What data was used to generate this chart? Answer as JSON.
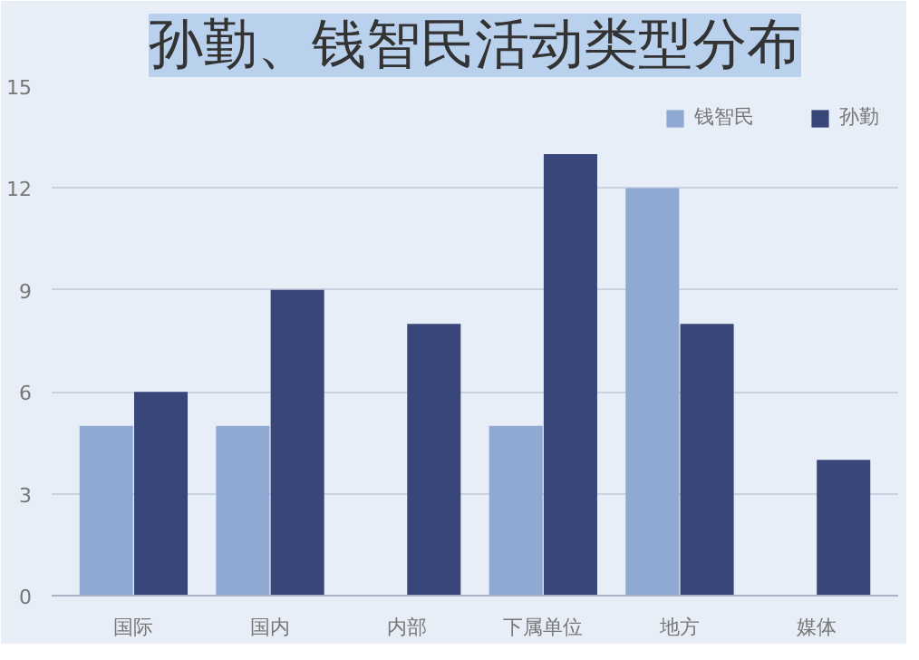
{
  "chart_data": {
    "type": "bar",
    "title": "孙勤、钱智民活动类型分布",
    "categories": [
      "国际",
      "国内",
      "内部",
      "下属单位",
      "地方",
      "媒体"
    ],
    "series": [
      {
        "name": "钱智民",
        "color": "#8fa9d3",
        "values": [
          5,
          5,
          null,
          5,
          12,
          null
        ]
      },
      {
        "name": "孙勤",
        "color": "#394679",
        "values": [
          6,
          9,
          8,
          13,
          8,
          4
        ]
      }
    ],
    "ylim": [
      0,
      15
    ],
    "yticks": [
      0,
      3,
      6,
      9,
      12,
      15
    ],
    "grid": "y",
    "legend": "top right"
  }
}
